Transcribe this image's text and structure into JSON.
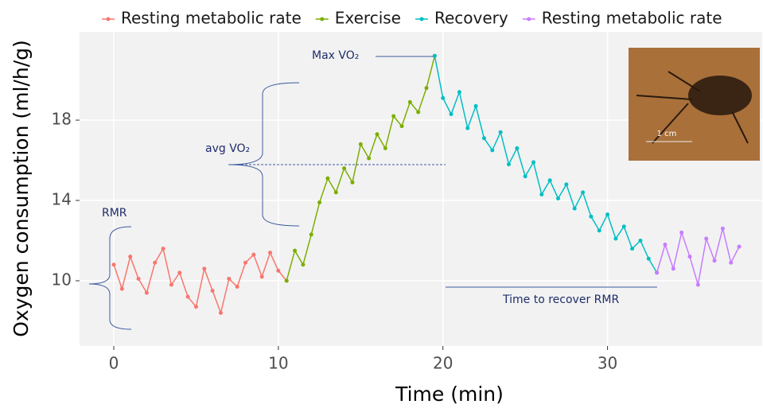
{
  "chart_data": {
    "type": "line",
    "x_label": "Time (min)",
    "y_label": "Oxygen consumption (ml/h/g)",
    "xlim": [
      -2.08,
      39.4
    ],
    "ylim": [
      6.75,
      22.4
    ],
    "xticks": [
      0,
      10,
      20,
      30
    ],
    "yticks": [
      10,
      14,
      18
    ],
    "grid": true,
    "series": [
      {
        "name": "Resting metabolic rate",
        "color": "#f8766d",
        "x": [
          0,
          0.5,
          1,
          1.5,
          2,
          2.5,
          3,
          3.5,
          4,
          4.5,
          5,
          5.5,
          6,
          6.5,
          7,
          7.5,
          8,
          8.5,
          9,
          9.5,
          10,
          10.5
        ],
        "values": [
          10.8,
          9.6,
          11.2,
          10.1,
          9.4,
          10.9,
          11.6,
          9.8,
          10.4,
          9.2,
          8.7,
          10.6,
          9.5,
          8.4,
          10.1,
          9.7,
          10.9,
          11.3,
          10.2,
          11.4,
          10.5,
          10.0
        ]
      },
      {
        "name": "Exercise",
        "color": "#7cae00",
        "x": [
          10.5,
          11,
          11.5,
          12,
          12.5,
          13,
          13.5,
          14,
          14.5,
          15,
          15.5,
          16,
          16.5,
          17,
          17.5,
          18,
          18.5,
          19,
          19.5
        ],
        "values": [
          10.0,
          11.5,
          10.8,
          12.3,
          13.9,
          15.1,
          14.4,
          15.6,
          14.9,
          16.8,
          16.1,
          17.3,
          16.6,
          18.2,
          17.7,
          18.9,
          18.4,
          19.6,
          21.2
        ]
      },
      {
        "name": "Recovery",
        "color": "#00bfc4",
        "x": [
          19.5,
          20,
          20.5,
          21,
          21.5,
          22,
          22.5,
          23,
          23.5,
          24,
          24.5,
          25,
          25.5,
          26,
          26.5,
          27,
          27.5,
          28,
          28.5,
          29,
          29.5,
          30,
          30.5,
          31,
          31.5,
          32,
          32.5,
          33
        ],
        "values": [
          21.2,
          19.1,
          18.3,
          19.4,
          17.6,
          18.7,
          17.1,
          16.5,
          17.4,
          15.8,
          16.6,
          15.2,
          15.9,
          14.3,
          15.0,
          14.1,
          14.8,
          13.6,
          14.4,
          13.2,
          12.5,
          13.3,
          12.1,
          12.7,
          11.6,
          12.0,
          11.1,
          10.4
        ]
      },
      {
        "name": "Resting metabolic rate",
        "color": "#c77cff",
        "x": [
          33,
          33.5,
          34,
          34.5,
          35,
          35.5,
          36,
          36.5,
          37,
          37.5,
          38
        ],
        "values": [
          10.4,
          11.8,
          10.6,
          12.4,
          11.2,
          9.8,
          12.1,
          11.0,
          12.6,
          10.9,
          11.7
        ]
      }
    ],
    "annotations": {
      "rmr": "RMR",
      "avg": "avg VO₂",
      "max": "Max VO₂",
      "recover": "Time to recover RMR",
      "scale": "1 cm"
    }
  }
}
